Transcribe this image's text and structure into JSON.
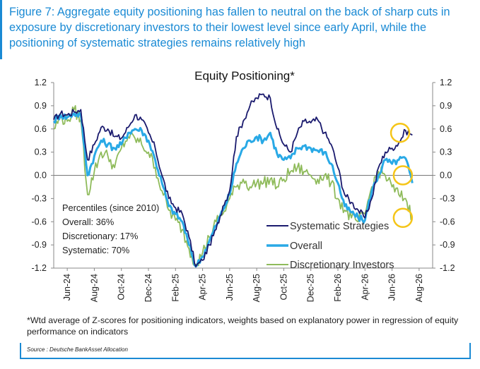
{
  "header": {
    "title": "Figure 7: Aggregate equity positioning has fallen to neutral on the back of sharp cuts in exposure by discretionary investors to their lowest level since early April, while the positioning of systematic strategies remains relatively high"
  },
  "chart_data": {
    "type": "line",
    "title": "Equity Positioning*",
    "xlabel": "",
    "ylabel": "",
    "ylim": [
      -1.2,
      1.2
    ],
    "yticks": [
      "1.2",
      "0.9",
      "0.6",
      "0.3",
      "0.0",
      "-0.3",
      "-0.6",
      "-0.9",
      "-1.2"
    ],
    "xticks": [
      "Jun-24",
      "Aug-24",
      "Oct-24",
      "Dec-24",
      "Feb-25",
      "Apr-25",
      "Jun-25",
      "Aug-25",
      "Oct-25",
      "Dec-25",
      "Feb-26",
      "Apr-26",
      "Jun-26",
      "Aug-26"
    ],
    "grid": false,
    "legend_position": "bottom-right",
    "colors": {
      "systematic": "#1a1a6e",
      "overall": "#29a9e6",
      "discretionary": "#8fbb5b",
      "highlight": "#f5c518"
    },
    "x": [
      0,
      0.25,
      0.5,
      0.75,
      1,
      1.25,
      1.5,
      1.75,
      2,
      2.25,
      2.5,
      2.75,
      3,
      3.25,
      3.5,
      3.75,
      4,
      4.25,
      4.5,
      4.75,
      5,
      5.25,
      5.5,
      5.75,
      6,
      6.25,
      6.5,
      6.75,
      7,
      7.25,
      7.5,
      7.75,
      8,
      8.25,
      8.5,
      8.75,
      9,
      9.25,
      9.5,
      9.75,
      10,
      10.25,
      10.5,
      10.75,
      11,
      11.25,
      11.5,
      11.75,
      12,
      12.25,
      12.5,
      12.75,
      13,
      13.25
    ],
    "series": [
      {
        "name": "Systematic Strategies",
        "values": [
          0.72,
          0.8,
          0.78,
          0.82,
          0.85,
          0.2,
          0.4,
          0.62,
          0.6,
          0.5,
          0.48,
          0.62,
          0.78,
          0.72,
          0.55,
          0.35,
          0.0,
          -0.3,
          -0.42,
          -0.5,
          -0.8,
          -1.18,
          -1.1,
          -0.9,
          -0.7,
          -0.4,
          -0.2,
          0.5,
          0.7,
          0.9,
          1.0,
          1.05,
          1.0,
          0.6,
          0.4,
          0.3,
          0.55,
          0.7,
          0.68,
          0.72,
          0.55,
          0.4,
          0.1,
          -0.25,
          -0.35,
          -0.45,
          -0.55,
          -0.3,
          0.1,
          0.3,
          0.35,
          0.42,
          0.58,
          0.52
        ]
      },
      {
        "name": "Overall",
        "values": [
          0.7,
          0.78,
          0.75,
          0.8,
          0.78,
          0.0,
          0.25,
          0.45,
          0.4,
          0.35,
          0.4,
          0.55,
          0.6,
          0.58,
          0.45,
          0.2,
          -0.1,
          -0.4,
          -0.5,
          -0.6,
          -0.9,
          -1.18,
          -1.05,
          -0.85,
          -0.65,
          -0.45,
          -0.25,
          0.15,
          0.35,
          0.45,
          0.5,
          0.45,
          0.55,
          0.28,
          0.2,
          0.22,
          0.35,
          0.38,
          0.35,
          0.32,
          0.3,
          0.15,
          -0.1,
          -0.4,
          -0.48,
          -0.55,
          -0.58,
          -0.2,
          0.0,
          0.2,
          0.15,
          0.2,
          0.22,
          -0.1
        ]
      },
      {
        "name": "Discretionary Investors",
        "values": [
          0.6,
          0.75,
          0.7,
          0.85,
          0.72,
          -0.25,
          0.05,
          0.3,
          0.25,
          0.1,
          0.35,
          0.5,
          0.48,
          0.4,
          0.3,
          0.1,
          -0.2,
          -0.45,
          -0.58,
          -0.7,
          -0.95,
          -1.15,
          -1.0,
          -0.8,
          -0.6,
          -0.5,
          -0.3,
          -0.15,
          -0.05,
          -0.15,
          -0.1,
          -0.1,
          -0.05,
          -0.15,
          -0.05,
          0.05,
          0.1,
          0.05,
          0.0,
          -0.05,
          0.0,
          -0.1,
          -0.3,
          -0.45,
          -0.55,
          -0.6,
          -0.5,
          -0.15,
          0.05,
          0.0,
          -0.15,
          -0.25,
          -0.3,
          -0.55
        ]
      }
    ],
    "annotations": {
      "percentiles_title": "Percentiles (since 2010)",
      "percentiles": [
        "Overall: 36%",
        "Discretionary: 17%",
        "Systematic: 70%"
      ]
    },
    "highlights": [
      {
        "x": 12.8,
        "y": 0.55
      },
      {
        "x": 12.9,
        "y": 0.0
      },
      {
        "x": 12.9,
        "y": -0.55
      }
    ]
  },
  "footnote": {
    "text": "*Wtd average of Z-scores for positioning indicators, weights based on explanatory power in regression of equity performance on indicators"
  },
  "source": {
    "text": "Source : Deutsche BankAsset Allocation"
  }
}
